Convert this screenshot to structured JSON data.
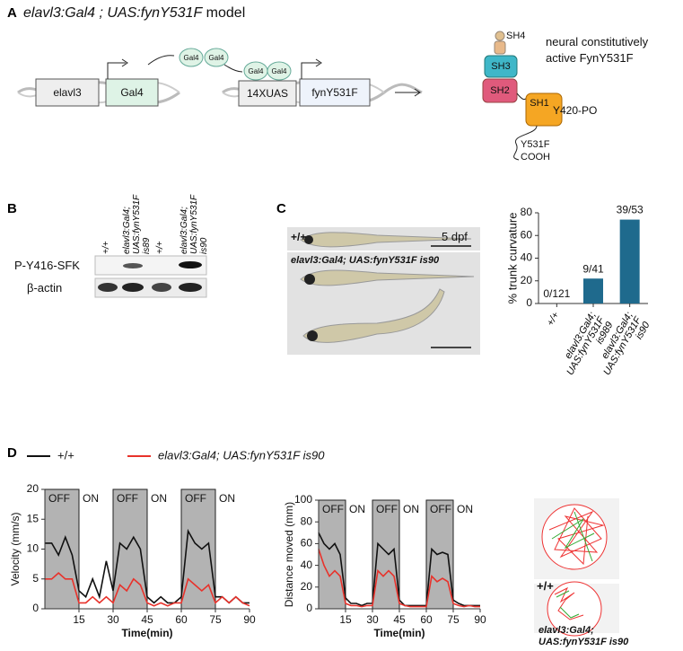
{
  "panel_labels": [
    "A",
    "B",
    "C",
    "D"
  ],
  "diagram": {
    "title": [
      "elavl3:Gal4 ; UAS:fynY531F",
      "model"
    ],
    "promoter": "elavl3",
    "gene": "Gal4",
    "protein": [
      "Gal4",
      "Gal4"
    ],
    "bound": [
      "Gal4",
      "Gal4"
    ],
    "uas": "14XUAS",
    "transgene": "fynY531F",
    "domains": [
      "SH4",
      "SH3",
      "SH2",
      "SH1"
    ],
    "sites": [
      "Y420-PO",
      "Y531F",
      "COOH"
    ],
    "description": "neural constitutively active FynY531F"
  },
  "blot": {
    "lanes": [
      "+/+",
      "elavl3:Gal4; UAS:fynY531F is89",
      "+/+",
      "elavl3:Gal4; UAS:fynY531F is90"
    ],
    "rows": [
      "P-Y416-SFK",
      "β-actin"
    ]
  },
  "fish": {
    "top_label": "+/+",
    "stage": "5 dpf",
    "bottom_label": "elavl3:Gal4; UAS:fynY531F is90"
  },
  "chart_data": [
    {
      "type": "bar",
      "y_label": "% trunk curvature",
      "categories": [
        "+/+",
        "elavl3:Gal4; UAS:fynY531F is989",
        "elavl3:Gal4; UAS:fynY531F is90"
      ],
      "values": [
        0,
        22,
        74
      ],
      "value_labels": [
        "0/121",
        "9/41",
        "39/53"
      ],
      "color": "#1f6a8d",
      "ylim": [
        0,
        80
      ],
      "yticks": [
        0,
        20,
        40,
        60,
        80
      ]
    },
    {
      "type": "line",
      "y_label": "Velocity (mm/s)",
      "x_label": "Time(min)",
      "xlim": [
        0,
        90
      ],
      "xticks": [
        15,
        30,
        45,
        60,
        75,
        90
      ],
      "ylim": [
        0,
        20
      ],
      "yticks": [
        0,
        5,
        10,
        15,
        20
      ],
      "periods": [
        {
          "label": "OFF",
          "start": 0,
          "end": 15,
          "shaded": true
        },
        {
          "label": "ON",
          "start": 15,
          "end": 30,
          "shaded": false
        },
        {
          "label": "OFF",
          "start": 30,
          "end": 45,
          "shaded": true
        },
        {
          "label": "ON",
          "start": 45,
          "end": 60,
          "shaded": false
        },
        {
          "label": "OFF",
          "start": 60,
          "end": 75,
          "shaded": true
        },
        {
          "label": "ON",
          "start": 75,
          "end": 90,
          "shaded": false
        }
      ],
      "x": [
        0,
        3,
        6,
        9,
        12,
        15,
        18,
        21,
        24,
        27,
        30,
        33,
        36,
        39,
        42,
        45,
        48,
        51,
        54,
        57,
        60,
        63,
        66,
        69,
        72,
        75,
        78,
        81,
        84,
        87,
        90
      ],
      "series": [
        {
          "name": "+/+",
          "color": "#111111",
          "values": [
            11,
            11,
            9,
            12,
            9,
            3,
            2,
            5,
            2,
            8,
            3,
            11,
            10,
            12,
            10,
            2,
            1,
            2,
            1,
            1,
            2,
            13,
            11,
            10,
            11,
            2,
            2,
            1,
            2,
            1,
            1
          ]
        },
        {
          "name": "elavl3:Gal4; UAS:fynY531F is90",
          "color": "#e8322b",
          "values": [
            5,
            5,
            6,
            5,
            5,
            1,
            1,
            2,
            1,
            2,
            1,
            4,
            3,
            5,
            4,
            1,
            0.5,
            1,
            0.5,
            1,
            1,
            5,
            4,
            3,
            4,
            1,
            2,
            1,
            2,
            1,
            0.5
          ]
        }
      ]
    },
    {
      "type": "line",
      "y_label": "Distance moved (mm)",
      "x_label": "Time(min)",
      "xlim": [
        0,
        90
      ],
      "xticks": [
        15,
        30,
        45,
        60,
        75,
        90
      ],
      "ylim": [
        0,
        100
      ],
      "yticks": [
        0,
        20,
        40,
        60,
        80,
        100
      ],
      "periods": [
        {
          "label": "OFF",
          "start": 0,
          "end": 15,
          "shaded": true
        },
        {
          "label": "ON",
          "start": 15,
          "end": 30,
          "shaded": false
        },
        {
          "label": "OFF",
          "start": 30,
          "end": 45,
          "shaded": true
        },
        {
          "label": "ON",
          "start": 45,
          "end": 60,
          "shaded": false
        },
        {
          "label": "OFF",
          "start": 60,
          "end": 75,
          "shaded": true
        },
        {
          "label": "ON",
          "start": 75,
          "end": 90,
          "shaded": false
        }
      ],
      "x": [
        0,
        3,
        6,
        9,
        12,
        15,
        18,
        21,
        24,
        27,
        30,
        33,
        36,
        39,
        42,
        45,
        48,
        51,
        54,
        57,
        60,
        63,
        66,
        69,
        72,
        75,
        78,
        81,
        84,
        87,
        90
      ],
      "series": [
        {
          "color": "#111111",
          "values": [
            70,
            60,
            55,
            60,
            50,
            10,
            5,
            5,
            3,
            5,
            5,
            60,
            55,
            50,
            55,
            8,
            3,
            3,
            3,
            3,
            3,
            55,
            50,
            52,
            50,
            8,
            5,
            3,
            3,
            3,
            3
          ]
        },
        {
          "color": "#e8322b",
          "values": [
            55,
            40,
            30,
            35,
            30,
            5,
            3,
            3,
            2,
            3,
            3,
            35,
            30,
            35,
            30,
            5,
            3,
            2,
            2,
            2,
            2,
            30,
            25,
            28,
            25,
            5,
            3,
            2,
            3,
            2,
            2
          ]
        }
      ]
    }
  ],
  "tracking": [
    "+/+",
    "elavl3:Gal4; UAS:fynY531F is90"
  ]
}
